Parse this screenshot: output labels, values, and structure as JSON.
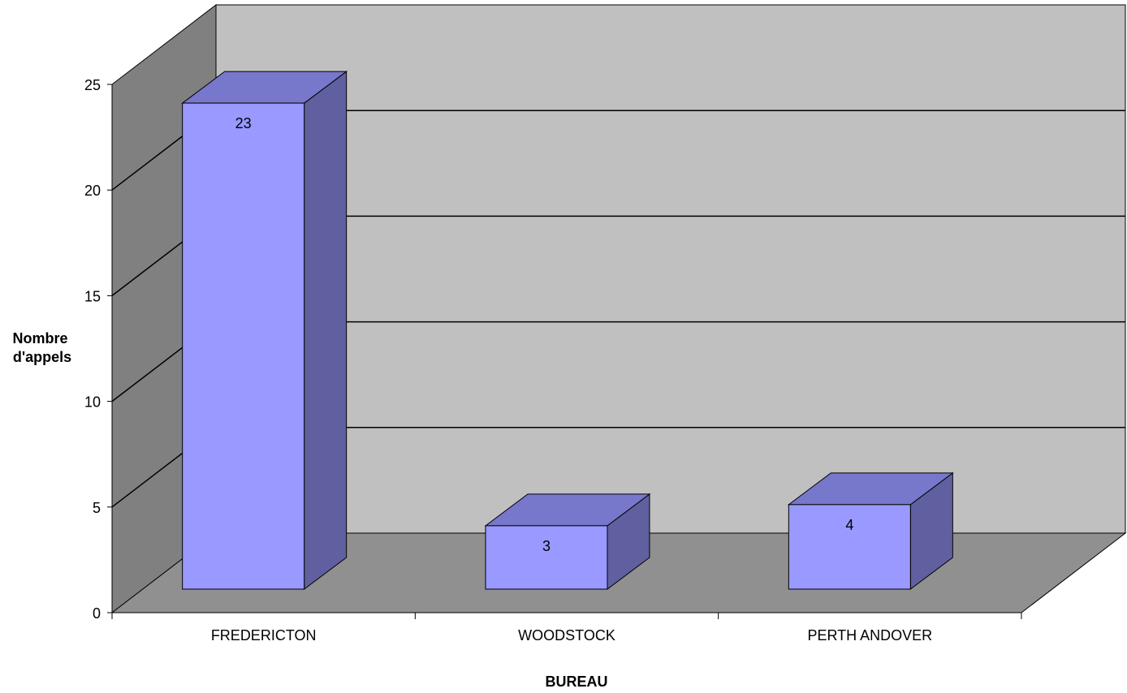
{
  "chart_data": {
    "type": "bar",
    "categories": [
      "FREDERICTON",
      "WOODSTOCK",
      "PERTH ANDOVER"
    ],
    "values": [
      23,
      3,
      4
    ],
    "data_labels": [
      "23",
      "3",
      "4"
    ],
    "xlabel": "BUREAU",
    "ylabel_lines": [
      "Nombre",
      "d'appels"
    ],
    "ylim": [
      0,
      25
    ],
    "yticks": [
      0,
      5,
      10,
      15,
      20,
      25
    ],
    "grid": true,
    "legend": "none",
    "colors": {
      "bar_front": "#9999ff",
      "bar_top": "#7777cc",
      "bar_side": "#6060a0",
      "back_wall": "#c0c0c0",
      "side_wall": "#808080",
      "floor": "#909090",
      "gridline": "#000000"
    }
  }
}
